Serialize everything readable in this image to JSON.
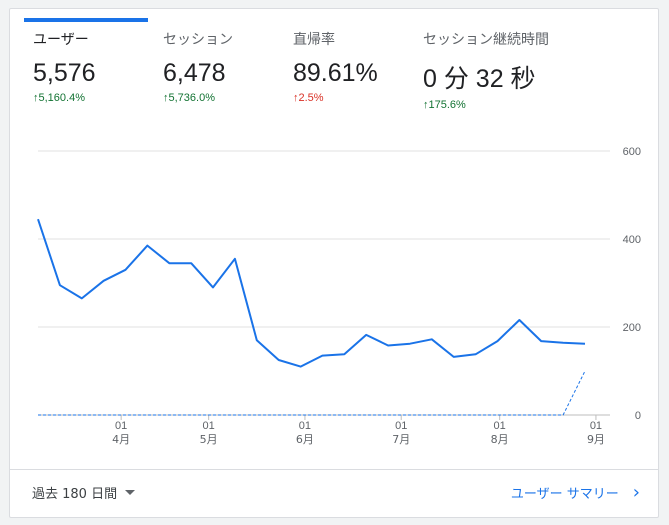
{
  "metrics": [
    {
      "label": "ユーザー",
      "value": "5,576",
      "change": "5,160.4%",
      "direction": "up",
      "status": "good"
    },
    {
      "label": "セッション",
      "value": "6,478",
      "change": "5,736.0%",
      "direction": "up",
      "status": "good"
    },
    {
      "label": "直帰率",
      "value": "89.61%",
      "change": "2.5%",
      "direction": "up",
      "status": "bad"
    },
    {
      "label": "セッション継続時間",
      "value": "0 分 32 秒",
      "change": "175.6%",
      "direction": "up",
      "status": "good"
    }
  ],
  "colors": {
    "accent": "#1a73e8",
    "good": "#137333",
    "bad": "#d93025",
    "grid": "#e0e0e0",
    "text": "#5f6368"
  },
  "chart_data": {
    "type": "line",
    "ylim": [
      0,
      600
    ],
    "yticks": [
      0,
      200,
      400,
      600
    ],
    "xticks": [
      {
        "label": "01",
        "sublabel": "4月",
        "index": 3.8
      },
      {
        "label": "01",
        "sublabel": "5月",
        "index": 7.8
      },
      {
        "label": "01",
        "sublabel": "6月",
        "index": 12.2
      },
      {
        "label": "01",
        "sublabel": "7月",
        "index": 16.6
      },
      {
        "label": "01",
        "sublabel": "8月",
        "index": 21.1
      },
      {
        "label": "01",
        "sublabel": "9月",
        "index": 25.5
      }
    ],
    "series": [
      {
        "style": "solid",
        "values": [
          445,
          295,
          265,
          305,
          330,
          385,
          345,
          345,
          290,
          355,
          170,
          125,
          110,
          135,
          138,
          182,
          158,
          162,
          172,
          132,
          138,
          168,
          216,
          168,
          164,
          162
        ]
      },
      {
        "style": "dashed",
        "values": [
          0,
          0,
          0,
          0,
          0,
          0,
          0,
          0,
          0,
          0,
          0,
          0,
          0,
          0,
          0,
          0,
          0,
          0,
          0,
          0,
          0,
          0,
          0,
          0,
          0,
          100
        ]
      }
    ]
  },
  "footer": {
    "range_label": "過去 180 日間",
    "link_label": "ユーザー サマリー",
    "link_icon": "chevron-right-icon"
  }
}
